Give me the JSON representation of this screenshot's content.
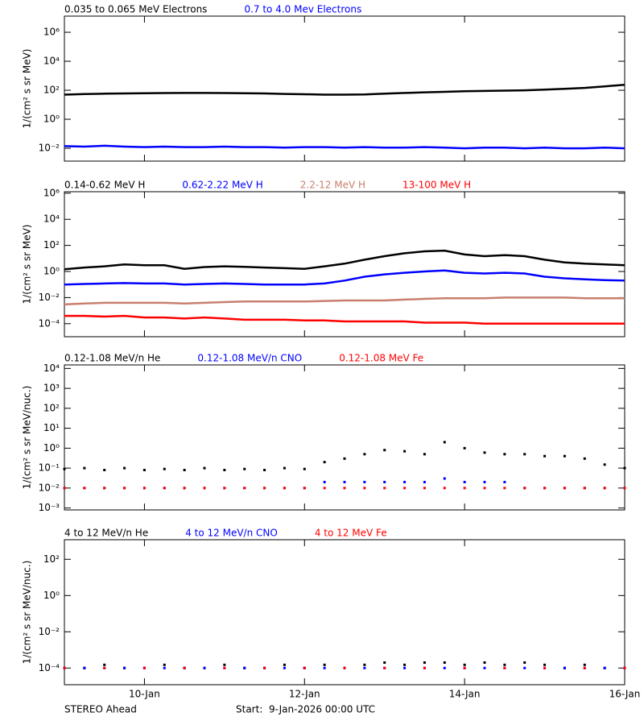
{
  "chart_data": [
    {
      "type": "line",
      "log": true,
      "ylabel": "1/(cm² s sr MeV)",
      "xlim": [
        0,
        7
      ],
      "ylim": [
        0.0013,
        13000000
      ],
      "xticks": [
        1,
        3,
        5,
        7
      ],
      "yticks": [
        {
          "value": 0.01,
          "label": "10⁻²"
        },
        {
          "value": 1,
          "label": "10⁰"
        },
        {
          "value": 100,
          "label": "10²"
        },
        {
          "value": 10000,
          "label": "10⁴"
        },
        {
          "value": 1000000,
          "label": "10⁶"
        }
      ],
      "x": [
        0,
        0.25,
        0.5,
        0.75,
        1,
        1.25,
        1.5,
        1.75,
        2,
        2.25,
        2.5,
        2.75,
        3,
        3.25,
        3.5,
        3.75,
        4,
        4.25,
        4.5,
        4.75,
        5,
        5.25,
        5.5,
        5.75,
        6,
        6.25,
        6.5,
        6.75,
        7
      ],
      "series": [
        {
          "name": "0.035 to 0.065 MeV Electrons",
          "color": "#000000",
          "values": [
            50,
            55,
            58,
            60,
            62,
            64,
            65,
            65,
            64,
            63,
            60,
            56,
            53,
            50,
            50,
            52,
            58,
            65,
            72,
            78,
            85,
            90,
            95,
            100,
            110,
            125,
            145,
            185,
            240
          ]
        },
        {
          "name": "0.7 to 4.0 Mev Electrons",
          "color": "#0000ff",
          "values": [
            0.014,
            0.013,
            0.015,
            0.013,
            0.012,
            0.013,
            0.012,
            0.012,
            0.013,
            0.012,
            0.012,
            0.011,
            0.012,
            0.012,
            0.011,
            0.012,
            0.011,
            0.011,
            0.012,
            0.011,
            0.01,
            0.011,
            0.011,
            0.01,
            0.011,
            0.01,
            0.01,
            0.011,
            0.01
          ]
        }
      ]
    },
    {
      "type": "line",
      "log": true,
      "ylabel": "1/(cm² s sr MeV)",
      "xlim": [
        0,
        7
      ],
      "ylim": [
        1e-05,
        1300000
      ],
      "xticks": [
        1,
        3,
        5,
        7
      ],
      "yticks": [
        {
          "value": 0.0001,
          "label": "10⁻⁴"
        },
        {
          "value": 0.01,
          "label": "10⁻²"
        },
        {
          "value": 1,
          "label": "10⁰"
        },
        {
          "value": 100,
          "label": "10²"
        },
        {
          "value": 10000,
          "label": "10⁴"
        },
        {
          "value": 1000000,
          "label": "10⁶"
        }
      ],
      "x": [
        0,
        0.25,
        0.5,
        0.75,
        1,
        1.25,
        1.5,
        1.75,
        2,
        2.25,
        2.5,
        2.75,
        3,
        3.25,
        3.5,
        3.75,
        4,
        4.25,
        4.5,
        4.75,
        5,
        5.25,
        5.5,
        5.75,
        6,
        6.25,
        6.5,
        6.75,
        7
      ],
      "series": [
        {
          "name": "0.14-0.62 MeV H",
          "color": "#000000",
          "values": [
            1.5,
            2,
            2.5,
            3.5,
            3,
            3,
            1.6,
            2.2,
            2.5,
            2.3,
            2,
            1.8,
            1.6,
            2.5,
            4,
            8,
            15,
            25,
            35,
            40,
            20,
            15,
            18,
            15,
            8,
            5,
            4,
            3.5,
            3
          ]
        },
        {
          "name": "0.62-2.22 MeV H",
          "color": "#0000ff",
          "values": [
            0.1,
            0.11,
            0.12,
            0.13,
            0.12,
            0.12,
            0.1,
            0.11,
            0.12,
            0.11,
            0.1,
            0.1,
            0.1,
            0.12,
            0.2,
            0.4,
            0.6,
            0.8,
            1,
            1.2,
            0.8,
            0.7,
            0.8,
            0.7,
            0.4,
            0.3,
            0.25,
            0.22,
            0.2
          ]
        },
        {
          "name": "2.2-12 MeV H",
          "color": "#c87f6e",
          "values": [
            0.003,
            0.0035,
            0.004,
            0.004,
            0.004,
            0.004,
            0.0035,
            0.004,
            0.0045,
            0.005,
            0.005,
            0.005,
            0.005,
            0.0055,
            0.006,
            0.006,
            0.006,
            0.007,
            0.008,
            0.009,
            0.009,
            0.009,
            0.01,
            0.01,
            0.01,
            0.01,
            0.009,
            0.009,
            0.009
          ]
        },
        {
          "name": "13-100 MeV H",
          "color": "#ff0000",
          "values": [
            0.0004,
            0.0004,
            0.00035,
            0.0004,
            0.0003,
            0.0003,
            0.00025,
            0.0003,
            0.00025,
            0.0002,
            0.0002,
            0.0002,
            0.00018,
            0.00018,
            0.00015,
            0.00015,
            0.00015,
            0.00015,
            0.00012,
            0.00012,
            0.00012,
            0.0001,
            0.0001,
            0.0001,
            0.0001,
            0.0001,
            0.0001,
            0.0001,
            0.0001
          ]
        }
      ]
    },
    {
      "type": "scatter",
      "log": true,
      "ylabel": "1/(cm² s sr MeV/nuc.)",
      "xlim": [
        0,
        7
      ],
      "ylim": [
        0.0008,
        15000
      ],
      "xticks": [
        1,
        3,
        5,
        7
      ],
      "yticks": [
        {
          "value": 0.001,
          "label": "10⁻³"
        },
        {
          "value": 0.01,
          "label": "10⁻²"
        },
        {
          "value": 0.1,
          "label": "10⁻¹"
        },
        {
          "value": 1,
          "label": "10⁰"
        },
        {
          "value": 10,
          "label": "10¹"
        },
        {
          "value": 100,
          "label": "10²"
        },
        {
          "value": 1000,
          "label": "10³"
        },
        {
          "value": 10000,
          "label": "10⁴"
        }
      ],
      "x": [
        0,
        0.25,
        0.5,
        0.75,
        1,
        1.25,
        1.5,
        1.75,
        2,
        2.25,
        2.5,
        2.75,
        3,
        3.25,
        3.5,
        3.75,
        4,
        4.25,
        4.5,
        4.75,
        5,
        5.25,
        5.5,
        5.75,
        6,
        6.25,
        6.5,
        6.75,
        7
      ],
      "series": [
        {
          "name": "0.12-1.08 MeV/n He",
          "color": "#000000",
          "values": [
            0.09,
            0.1,
            0.08,
            0.1,
            0.08,
            0.09,
            0.08,
            0.1,
            0.08,
            0.09,
            0.08,
            0.1,
            0.09,
            0.2,
            0.3,
            0.5,
            0.8,
            0.7,
            0.5,
            2,
            1,
            0.6,
            0.5,
            0.5,
            0.4,
            0.4,
            0.3,
            0.15,
            0.1
          ]
        },
        {
          "name": "0.12-1.08 MeV/n CNO",
          "color": "#0000ff",
          "values": [
            0.01,
            0.01,
            0.01,
            0.01,
            0.01,
            0.01,
            0.01,
            0.01,
            0.01,
            0.01,
            0.01,
            0.01,
            0.01,
            0.02,
            0.02,
            0.02,
            0.02,
            0.02,
            0.02,
            0.03,
            0.02,
            0.02,
            0.02,
            0.01,
            0.01,
            0.01,
            0.01,
            0.01,
            0.01
          ]
        },
        {
          "name": "0.12-1.08 MeV Fe",
          "color": "#ff0000",
          "values": [
            0.01,
            0.01,
            0.01,
            0.01,
            0.01,
            0.01,
            0.01,
            0.01,
            0.01,
            0.01,
            0.01,
            0.01,
            0.01,
            0.01,
            0.01,
            0.01,
            0.01,
            0.01,
            0.01,
            0.01,
            0.01,
            0.01,
            0.01,
            0.01,
            0.01,
            0.01,
            0.01,
            0.01,
            0.01
          ]
        }
      ]
    },
    {
      "type": "scatter",
      "log": true,
      "ylabel": "1/(cm² s sr MeV/nuc.)",
      "xlim": [
        0,
        7
      ],
      "ylim": [
        1.2e-05,
        1200
      ],
      "xticks": [
        {
          "value": 1,
          "label": "10-Jan"
        },
        {
          "value": 3,
          "label": "12-Jan"
        },
        {
          "value": 5,
          "label": "14-Jan"
        },
        {
          "value": 7,
          "label": "16-Jan"
        }
      ],
      "yticks": [
        {
          "value": 0.0001,
          "label": "10⁻⁴"
        },
        {
          "value": 0.01,
          "label": "10⁻²"
        },
        {
          "value": 1,
          "label": "10⁰"
        },
        {
          "value": 100,
          "label": "10²"
        }
      ],
      "x": [
        0,
        0.25,
        0.5,
        0.75,
        1,
        1.25,
        1.5,
        1.75,
        2,
        2.25,
        2.5,
        2.75,
        3,
        3.25,
        3.5,
        3.75,
        4,
        4.25,
        4.5,
        4.75,
        5,
        5.25,
        5.5,
        5.75,
        6,
        6.25,
        6.5,
        6.75,
        7
      ],
      "series": [
        {
          "name": "4 to 12 MeV/n He",
          "color": "#000000",
          "values": [
            0.0001,
            0.0001,
            0.00015,
            0.0001,
            0.0001,
            0.00015,
            0.0001,
            0.0001,
            0.00015,
            0.0001,
            0.0001,
            0.00015,
            0.0001,
            0.00015,
            0.0001,
            0.00015,
            0.0002,
            0.00015,
            0.0002,
            0.0002,
            0.00015,
            0.0002,
            0.00015,
            0.0002,
            0.00015,
            0.0001,
            0.00015,
            0.0001,
            0.0001
          ]
        },
        {
          "name": "4 to 12 MeV/n CNO",
          "color": "#0000ff",
          "values": [
            0.0001,
            0.0001,
            0.0001,
            0.0001,
            0.0001,
            0.0001,
            0.0001,
            0.0001,
            0.0001,
            0.0001,
            0.0001,
            0.0001,
            0.0001,
            0.0001,
            0.0001,
            0.0001,
            0.0001,
            0.0001,
            0.0001,
            0.0001,
            0.0001,
            0.0001,
            0.0001,
            0.0001,
            0.0001,
            0.0001,
            0.0001,
            0.0001,
            0.0001
          ]
        },
        {
          "name": "4 to 12 MeV Fe",
          "color": "#ff0000",
          "values": [
            0.0001,
            null,
            0.0001,
            null,
            0.0001,
            null,
            0.0001,
            null,
            0.0001,
            null,
            0.0001,
            null,
            0.0001,
            null,
            0.0001,
            null,
            0.0001,
            null,
            0.0001,
            null,
            0.0001,
            null,
            0.0001,
            null,
            0.0001,
            null,
            0.0001,
            null,
            0.0001
          ]
        }
      ]
    }
  ],
  "footer": {
    "mission": "STEREO Ahead",
    "start": "Start:  9-Jan-2026 00:00 UTC"
  }
}
